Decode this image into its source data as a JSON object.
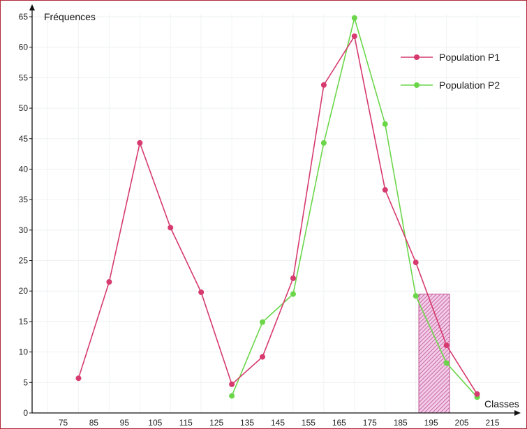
{
  "chart_data": {
    "type": "line",
    "xlabel": "Classes",
    "ylabel": "Fréquences",
    "xlim": [
      70,
      225
    ],
    "ylim": [
      0,
      65
    ],
    "x_ticks": [
      75,
      85,
      95,
      105,
      115,
      125,
      135,
      145,
      155,
      165,
      175,
      185,
      195,
      205,
      215
    ],
    "y_ticks": [
      0,
      5,
      10,
      15,
      20,
      25,
      30,
      35,
      40,
      45,
      50,
      55,
      60,
      65
    ],
    "grid": true,
    "legend_position": "top-right",
    "series": [
      {
        "name": "Population P1",
        "color": "#d63a6e",
        "x": [
          80,
          90,
          100,
          110,
          120,
          130,
          140,
          150,
          160,
          170,
          180,
          190,
          200,
          210
        ],
        "y": [
          5.7,
          21.5,
          44.3,
          30.4,
          19.8,
          4.7,
          9.2,
          22.1,
          53.8,
          61.8,
          36.6,
          24.7,
          11.1,
          3.1
        ]
      },
      {
        "name": "Population P2",
        "color": "#6bd64a",
        "x": [
          130,
          140,
          150,
          160,
          170,
          180,
          190,
          200,
          210
        ],
        "y": [
          2.8,
          14.9,
          19.5,
          44.3,
          64.8,
          47.4,
          19.2,
          8.2,
          2.6
        ]
      }
    ],
    "highlight": {
      "x_range": [
        196,
        206
      ],
      "y_max": 19.5,
      "color": "#c23a8a"
    }
  }
}
